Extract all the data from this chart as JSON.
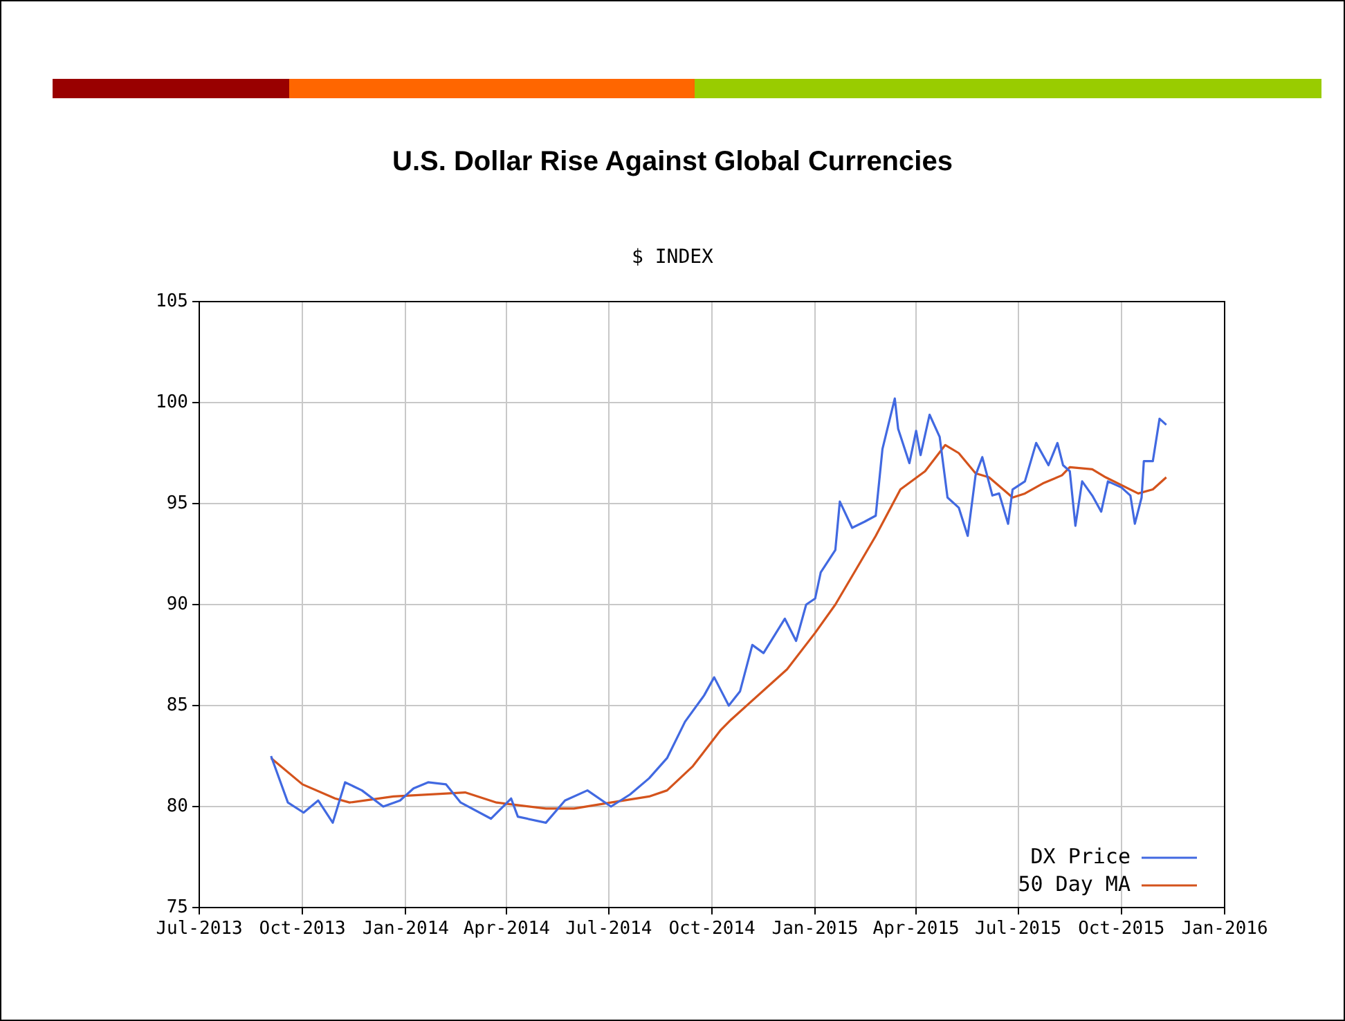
{
  "chart_data": {
    "type": "line",
    "title": "U.S. Dollar Rise Against Global Currencies",
    "subtitle": "$ INDEX",
    "xlim": [
      "2013-07",
      "2016-01"
    ],
    "xticks": [
      {
        "value": "2013-07",
        "label": "Jul-2013"
      },
      {
        "value": "2013-10",
        "label": "Oct-2013"
      },
      {
        "value": "2014-01",
        "label": "Jan-2014"
      },
      {
        "value": "2014-04",
        "label": "Apr-2014"
      },
      {
        "value": "2014-07",
        "label": "Jul-2014"
      },
      {
        "value": "2014-10",
        "label": "Oct-2014"
      },
      {
        "value": "2015-01",
        "label": "Jan-2015"
      },
      {
        "value": "2015-04",
        "label": "Apr-2015"
      },
      {
        "value": "2015-07",
        "label": "Jul-2015"
      },
      {
        "value": "2015-10",
        "label": "Oct-2015"
      },
      {
        "value": "2016-01",
        "label": "Jan-2016"
      }
    ],
    "ylim": [
      75,
      105
    ],
    "yticks": [
      75,
      80,
      85,
      90,
      95,
      100,
      105
    ],
    "grid": true,
    "legend": "bottom right",
    "marker": "none",
    "line_style": "solid",
    "series": [
      {
        "name": "DX Price",
        "color": "#4169e1",
        "x": [
          "2013-09-03",
          "2013-09-18",
          "2013-10-02",
          "2013-10-15",
          "2013-10-28",
          "2013-11-08",
          "2013-11-23",
          "2013-12-12",
          "2013-12-27",
          "2014-01-08",
          "2014-01-21",
          "2014-02-06",
          "2014-02-19",
          "2014-03-18",
          "2014-04-05",
          "2014-04-11",
          "2014-05-06",
          "2014-05-23",
          "2014-06-12",
          "2014-07-03",
          "2014-07-20",
          "2014-08-06",
          "2014-08-22",
          "2014-09-07",
          "2014-09-24",
          "2014-10-03",
          "2014-10-16",
          "2014-10-26",
          "2014-11-06",
          "2014-11-16",
          "2014-12-05",
          "2014-12-15",
          "2014-12-24",
          "2015-01-01",
          "2015-01-06",
          "2015-01-19",
          "2015-01-23",
          "2015-02-03",
          "2015-02-14",
          "2015-02-24",
          "2015-03-02",
          "2015-03-13",
          "2015-03-16",
          "2015-03-26",
          "2015-04-01",
          "2015-04-05",
          "2015-04-13",
          "2015-04-22",
          "2015-04-29",
          "2015-05-09",
          "2015-05-17",
          "2015-05-24",
          "2015-05-30",
          "2015-06-08",
          "2015-06-14",
          "2015-06-22",
          "2015-06-26",
          "2015-07-07",
          "2015-07-17",
          "2015-07-28",
          "2015-08-05",
          "2015-08-10",
          "2015-08-16",
          "2015-08-21",
          "2015-08-27",
          "2015-09-05",
          "2015-09-13",
          "2015-09-19",
          "2015-10-01",
          "2015-10-09",
          "2015-10-13",
          "2015-10-19",
          "2015-10-21",
          "2015-10-29",
          "2015-11-04",
          "2015-11-10"
        ],
        "values": [
          82.5,
          80.2,
          79.7,
          80.3,
          79.2,
          81.2,
          80.8,
          80.0,
          80.3,
          80.9,
          81.2,
          81.1,
          80.2,
          79.4,
          80.4,
          79.5,
          79.2,
          80.3,
          80.8,
          80.0,
          80.6,
          81.4,
          82.4,
          84.2,
          85.5,
          86.4,
          85.0,
          85.7,
          88.0,
          87.6,
          89.3,
          88.2,
          90.0,
          90.3,
          91.6,
          92.7,
          95.1,
          93.8,
          94.1,
          94.4,
          97.7,
          100.2,
          98.7,
          97.0,
          98.6,
          97.4,
          99.4,
          98.3,
          95.3,
          94.8,
          93.4,
          96.4,
          97.3,
          95.4,
          95.5,
          94.0,
          95.7,
          96.1,
          98.0,
          96.9,
          98.0,
          96.9,
          96.6,
          93.9,
          96.1,
          95.4,
          94.6,
          96.1,
          95.8,
          95.4,
          94.0,
          95.3,
          97.1,
          97.1,
          99.2,
          98.9
        ]
      },
      {
        "name": "50 Day MA",
        "color": "#d4531c",
        "x": [
          "2013-09-03",
          "2013-10-01",
          "2013-10-30",
          "2013-11-12",
          "2013-12-21",
          "2014-02-23",
          "2014-03-23",
          "2014-05-06",
          "2014-05-31",
          "2014-07-03",
          "2014-08-06",
          "2014-08-22",
          "2014-09-14",
          "2014-10-09",
          "2014-10-18",
          "2014-12-07",
          "2015-01-01",
          "2015-01-19",
          "2015-02-05",
          "2015-02-24",
          "2015-03-18",
          "2015-04-09",
          "2015-04-27",
          "2015-05-09",
          "2015-05-24",
          "2015-06-05",
          "2015-06-26",
          "2015-07-07",
          "2015-07-23",
          "2015-08-09",
          "2015-08-16",
          "2015-09-05",
          "2015-09-17",
          "2015-10-16",
          "2015-10-29",
          "2015-11-10"
        ],
        "values": [
          82.4,
          81.1,
          80.4,
          80.2,
          80.5,
          80.7,
          80.2,
          79.9,
          79.9,
          80.2,
          80.5,
          80.8,
          82.0,
          83.8,
          84.3,
          86.8,
          88.6,
          90.0,
          91.6,
          93.4,
          95.7,
          96.6,
          97.9,
          97.5,
          96.5,
          96.3,
          95.3,
          95.5,
          96.0,
          96.4,
          96.8,
          96.7,
          96.3,
          95.5,
          95.7,
          96.3
        ]
      }
    ]
  }
}
